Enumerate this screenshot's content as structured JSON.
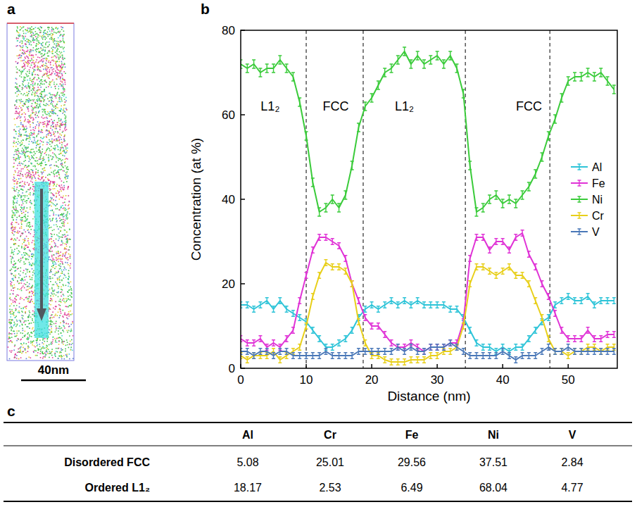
{
  "panel_a": {
    "panel_label": "a",
    "scale_bar": "40nm"
  },
  "chart_data": {
    "panel_label": "b",
    "type": "line",
    "x_label": "Distance (nm)",
    "y_label": "Concentration (at %)",
    "xlim": [
      0,
      57.5
    ],
    "xticks": [
      0,
      10,
      20,
      30,
      40,
      50
    ],
    "ylim": [
      0,
      80
    ],
    "yticks": [
      0,
      20,
      40,
      60,
      80
    ],
    "grid": false,
    "legend": "center right",
    "phase_boundaries": [
      10,
      18.7,
      34.3,
      47.2
    ],
    "annotations": [
      {
        "text": "L1₂",
        "x": 4.5,
        "y": 62
      },
      {
        "text": "FCC",
        "x": 14.5,
        "y": 62
      },
      {
        "text": "L1₂",
        "x": 25,
        "y": 62
      },
      {
        "text": "FCC",
        "x": 44,
        "y": 62
      }
    ],
    "x": [
      0,
      1,
      2,
      3,
      4,
      5,
      6,
      7,
      8,
      9,
      10,
      11,
      12,
      13,
      14,
      15,
      16,
      17,
      18,
      19,
      20,
      21,
      22,
      23,
      24,
      25,
      26,
      27,
      28,
      29,
      30,
      31,
      32,
      33,
      34,
      35,
      36,
      37,
      38,
      39,
      40,
      41,
      42,
      43,
      44,
      45,
      46,
      47,
      48,
      49,
      50,
      51,
      52,
      53,
      54,
      55,
      56,
      57
    ],
    "series": [
      {
        "name": "Al",
        "color": "#2ec4d8",
        "error": 0.7,
        "values": [
          15,
          15,
          14,
          15,
          16,
          14,
          16,
          14,
          13,
          12,
          11,
          9,
          7,
          5,
          5,
          6,
          7,
          9,
          12,
          14,
          15,
          14,
          15,
          16,
          15,
          16,
          15,
          16,
          15,
          15,
          15,
          15,
          14,
          14,
          12,
          9,
          6,
          5,
          5,
          4,
          5,
          4,
          5,
          5,
          7,
          9,
          11,
          12,
          15,
          16,
          17,
          16,
          16,
          17,
          15,
          16,
          16,
          16
        ]
      },
      {
        "name": "Fe",
        "color": "#e033d6",
        "error": 0.7,
        "values": [
          7,
          6,
          6,
          7,
          5,
          6,
          5,
          7,
          9,
          16,
          22,
          28,
          31,
          31,
          30,
          29,
          26,
          20,
          16,
          12,
          10,
          10,
          8,
          6,
          5,
          5,
          6,
          5,
          4,
          5,
          5,
          5,
          6,
          6,
          11,
          26,
          31,
          31,
          28,
          30,
          30,
          28,
          31,
          32,
          27,
          24,
          20,
          17,
          13,
          9,
          7,
          7,
          7,
          9,
          7,
          7,
          8,
          8
        ]
      },
      {
        "name": "Ni",
        "color": "#3acb3a",
        "error": 1.0,
        "values": [
          72,
          71,
          72,
          70,
          71,
          71,
          73,
          71,
          69,
          63,
          55,
          44,
          37,
          38,
          40,
          38,
          41,
          48,
          57,
          62,
          64,
          67,
          70,
          71,
          73,
          75,
          72,
          74,
          72,
          73,
          74,
          72,
          74,
          71,
          65,
          48,
          37,
          38,
          40,
          41,
          39,
          40,
          39,
          41,
          43,
          46,
          50,
          55,
          59,
          64,
          68,
          69,
          69,
          70,
          69,
          70,
          68,
          66
        ]
      },
      {
        "name": "Cr",
        "color": "#e8cf1a",
        "error": 0.7,
        "values": [
          3,
          2,
          3,
          3,
          3,
          4,
          2,
          3,
          4,
          5,
          10,
          17,
          22,
          25,
          24,
          24,
          23,
          20,
          11,
          6,
          3,
          3,
          2,
          1.5,
          1.5,
          1.5,
          2,
          2,
          2,
          3,
          3,
          4,
          4,
          5,
          10,
          20,
          24,
          24,
          23,
          22,
          23,
          24,
          22,
          22,
          20,
          16,
          12,
          7,
          4,
          4,
          3,
          4,
          4,
          5,
          5,
          4,
          5,
          5
        ]
      },
      {
        "name": "V",
        "color": "#4a78b8",
        "error": 0.7,
        "values": [
          4,
          4,
          3,
          4,
          4,
          3,
          4,
          4,
          3,
          3,
          3,
          3,
          3,
          4,
          3,
          3,
          3,
          3,
          4,
          4,
          4,
          4,
          4,
          4,
          5,
          4,
          5,
          4,
          4,
          5,
          5,
          5,
          6,
          5,
          4,
          3,
          3,
          3,
          3,
          3,
          4,
          3,
          2,
          3,
          3,
          3,
          4,
          5,
          4,
          4,
          5,
          4,
          4,
          4,
          4,
          4,
          4,
          4
        ]
      }
    ]
  },
  "table": {
    "panel_label": "c",
    "columns": [
      "Al",
      "Cr",
      "Fe",
      "Ni",
      "V"
    ],
    "rows": [
      {
        "label": "Disordered FCC",
        "values": [
          5.08,
          25.01,
          29.56,
          37.51,
          2.84
        ]
      },
      {
        "label": "Ordered L1₂",
        "values": [
          18.17,
          2.53,
          6.49,
          68.04,
          4.77
        ]
      }
    ]
  }
}
